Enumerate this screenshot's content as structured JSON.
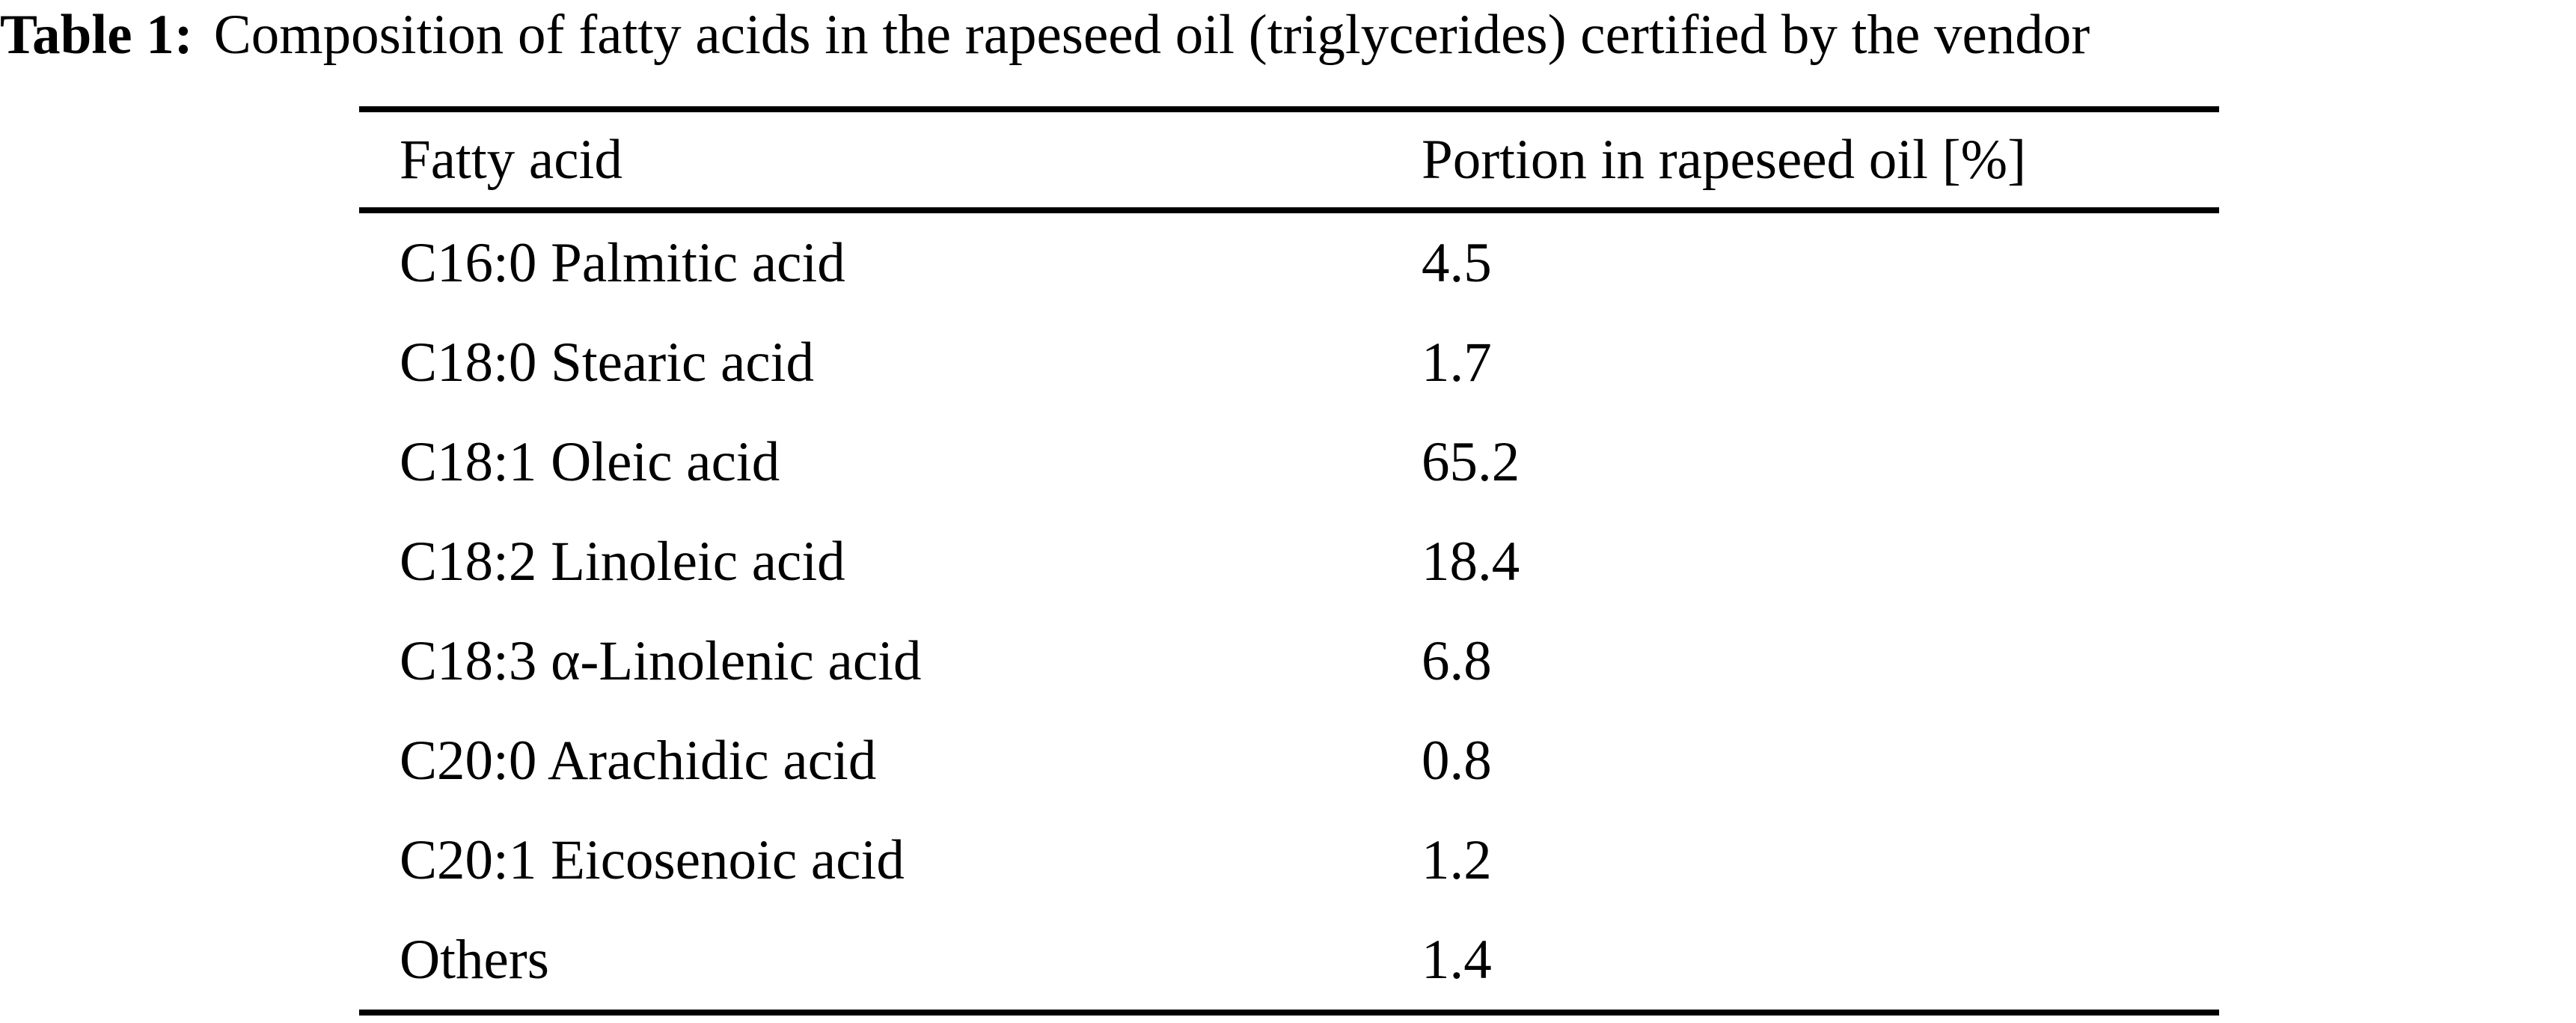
{
  "caption": {
    "label": "Table 1:",
    "text": "Composition of fatty acids in the rapeseed oil (triglycerides) certified by the vendor"
  },
  "table": {
    "headers": {
      "fatty_acid": "Fatty acid",
      "portion": "Portion in rapeseed oil [%]"
    },
    "rows": [
      {
        "fatty_acid": "C16:0 Palmitic acid",
        "portion": "4.5"
      },
      {
        "fatty_acid": "C18:0 Stearic acid",
        "portion": "1.7"
      },
      {
        "fatty_acid": "C18:1 Oleic acid",
        "portion": "65.2"
      },
      {
        "fatty_acid": "C18:2 Linoleic acid",
        "portion": "18.4"
      },
      {
        "fatty_acid": "C18:3 α-Linolenic acid",
        "portion": "6.8"
      },
      {
        "fatty_acid": "C20:0 Arachidic acid",
        "portion": "0.8"
      },
      {
        "fatty_acid": "C20:1 Eicosenoic acid",
        "portion": "1.2"
      },
      {
        "fatty_acid": "Others",
        "portion": "1.4"
      }
    ]
  },
  "colors": {
    "text": "#000000",
    "background": "#ffffff",
    "rule": "#000000"
  },
  "chart_data": {
    "type": "table",
    "title": "Table 1: Composition of fatty acids in the rapeseed oil (triglycerides) certified by the vendor",
    "columns": [
      "Fatty acid",
      "Portion in rapeseed oil [%]"
    ],
    "categories": [
      "C16:0 Palmitic acid",
      "C18:0 Stearic acid",
      "C18:1 Oleic acid",
      "C18:2 Linoleic acid",
      "C18:3 α-Linolenic acid",
      "C20:0 Arachidic acid",
      "C20:1 Eicosenoic acid",
      "Others"
    ],
    "values": [
      4.5,
      1.7,
      65.2,
      18.4,
      6.8,
      0.8,
      1.2,
      1.4
    ]
  }
}
